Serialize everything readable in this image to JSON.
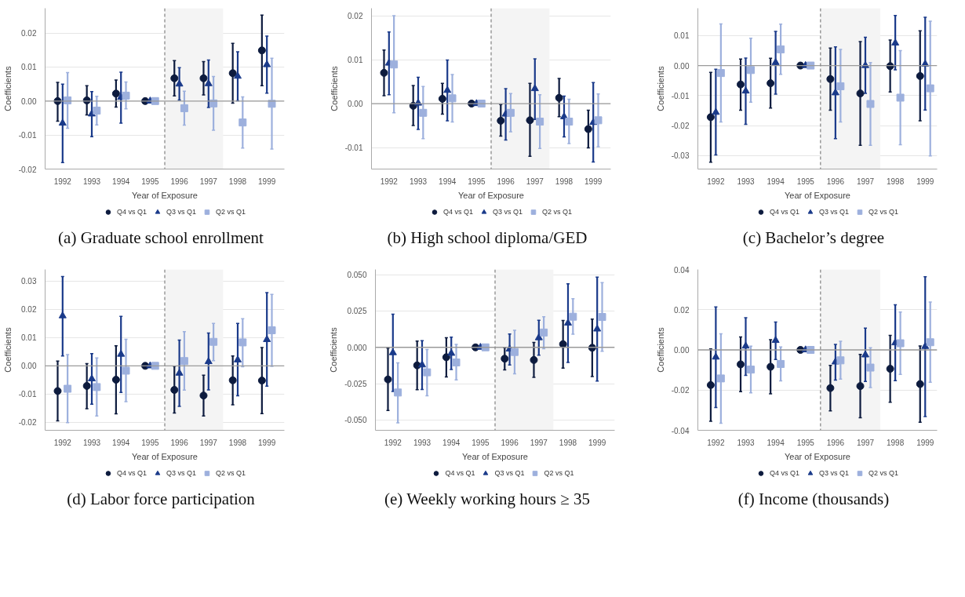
{
  "chart_data": [
    {
      "type": "scatter",
      "title": "(a) Graduate school enrollment",
      "xlabel": "Year of Exposure",
      "ylabel": "Coefficients",
      "xlim": [
        1991.4,
        1999.6
      ],
      "xticks": [
        1992,
        1993,
        1994,
        1995,
        1996,
        1997,
        1998,
        1999
      ],
      "ylim": [
        -0.02,
        0.0273
      ],
      "yticks": [
        -0.02,
        -0.01,
        {
          "value": 0,
          "label": "0.00"
        },
        0.01,
        0.02
      ],
      "grid": "y",
      "legend": "bottom",
      "ref_lines": [
        {
          "axis": "y",
          "value": 0,
          "color": "#9a9a9a",
          "line_style": "solid"
        },
        {
          "axis": "x",
          "value": 1995.5,
          "color": "#8a8a8a",
          "line_style": "dashed"
        }
      ],
      "bands": [
        {
          "axis": "x",
          "from": 1995.5,
          "to": 1997.5,
          "color": "#f4f4f4"
        }
      ],
      "series": [
        {
          "name": "Q4 vs Q1",
          "color": "#0d1b3e",
          "marker": "circle",
          "x": [
            1991.83,
            1992.83,
            1993.83,
            1994.83,
            1995.83,
            1996.83,
            1997.83,
            1998.83
          ],
          "values": [
            0.0,
            0.0002,
            0.0022,
            0,
            0.0067,
            0.0067,
            0.0082,
            0.0149
          ],
          "errors": [
            [
              -0.0059,
              0.0055
            ],
            [
              -0.0041,
              0.0045
            ],
            [
              -0.0018,
              0.0062
            ],
            null,
            [
              0.0015,
              0.0119
            ],
            [
              0.0018,
              0.0116
            ],
            [
              -0.0006,
              0.017
            ],
            [
              0.0045,
              0.0253
            ]
          ]
        },
        {
          "name": "Q3 vs Q1",
          "color": "#1a3a8a",
          "marker": "triangle",
          "x": [
            1992,
            1993,
            1994,
            1995,
            1996,
            1997,
            1998,
            1999
          ],
          "values": [
            -0.0065,
            -0.0038,
            0.0011,
            0,
            0.005,
            0.0051,
            0.0073,
            0.0107
          ],
          "errors": [
            [
              -0.0181,
              0.005
            ],
            [
              -0.0105,
              0.0028
            ],
            [
              -0.0065,
              0.0085
            ],
            null,
            [
              0.0003,
              0.0098
            ],
            [
              -0.0019,
              0.0121
            ],
            [
              0.0001,
              0.0145
            ],
            [
              0.0023,
              0.0191
            ]
          ]
        },
        {
          "name": "Q2 vs Q1",
          "color": "#9db0dd",
          "marker": "square",
          "x": [
            1992.17,
            1993.17,
            1994.17,
            1995.17,
            1996.17,
            1997.17,
            1998.17,
            1999.17
          ],
          "values": [
            0.0002,
            -0.0028,
            0.0016,
            0,
            -0.0021,
            -0.0007,
            -0.0063,
            -0.0008
          ],
          "errors": [
            [
              -0.008,
              0.0084
            ],
            [
              -0.007,
              0.0014
            ],
            [
              -0.0023,
              0.0056
            ],
            null,
            [
              -0.0071,
              0.0029
            ],
            [
              -0.0086,
              0.0072
            ],
            [
              -0.0138,
              0.0012
            ],
            [
              -0.0141,
              0.0126
            ]
          ]
        }
      ]
    },
    {
      "type": "scatter",
      "title": "(b) High school diploma/GED",
      "xlabel": "Year of Exposure",
      "ylabel": "Coefficients",
      "xlim": [
        1991.4,
        1999.6
      ],
      "xticks": [
        1992,
        1993,
        1994,
        1995,
        1996,
        1997,
        1998,
        1999
      ],
      "ylim": [
        -0.0149,
        0.0217
      ],
      "yticks": [
        -0.01,
        {
          "value": 0,
          "label": "0.00"
        },
        0.01,
        0.02
      ],
      "grid": "y",
      "legend": "bottom",
      "ref_lines": [
        {
          "axis": "y",
          "value": 0,
          "color": "#9a9a9a",
          "line_style": "solid"
        },
        {
          "axis": "x",
          "value": 1995.5,
          "color": "#8a8a8a",
          "line_style": "dashed"
        }
      ],
      "bands": [
        {
          "axis": "x",
          "from": 1995.5,
          "to": 1997.5,
          "color": "#f4f4f4"
        }
      ],
      "series": [
        {
          "name": "Q4 vs Q1",
          "color": "#0d1b3e",
          "marker": "circle",
          "x": [
            1991.83,
            1992.83,
            1993.83,
            1994.83,
            1995.83,
            1996.83,
            1997.83,
            1998.83
          ],
          "values": [
            0.007,
            -0.0005,
            0.0011,
            0,
            -0.0039,
            -0.0038,
            0.0013,
            -0.0058
          ],
          "errors": [
            [
              0.0018,
              0.0122
            ],
            [
              -0.005,
              0.0041
            ],
            [
              -0.0024,
              0.0046
            ],
            null,
            [
              -0.0074,
              -0.0002
            ],
            [
              -0.012,
              0.0046
            ],
            [
              -0.003,
              0.0057
            ],
            [
              -0.0101,
              -0.0015
            ]
          ]
        },
        {
          "name": "Q3 vs Q1",
          "color": "#1a3a8a",
          "marker": "triangle",
          "x": [
            1992,
            1993,
            1994,
            1995,
            1996,
            1997,
            1998,
            1999
          ],
          "values": [
            0.0092,
            0.0001,
            0.003,
            0,
            -0.0024,
            0.0034,
            -0.003,
            -0.0043
          ],
          "errors": [
            [
              0.002,
              0.0163
            ],
            [
              -0.0059,
              0.006
            ],
            [
              -0.0039,
              0.0099
            ],
            null,
            [
              -0.0083,
              0.0034
            ],
            [
              -0.0036,
              0.0102
            ],
            [
              -0.0076,
              0.0017
            ],
            [
              -0.0133,
              0.0048
            ]
          ]
        },
        {
          "name": "Q2 vs Q1",
          "color": "#9db0dd",
          "marker": "square",
          "x": [
            1992.17,
            1993.17,
            1994.17,
            1995.17,
            1996.17,
            1997.17,
            1998.17,
            1999.17
          ],
          "values": [
            0.0089,
            -0.0021,
            0.0012,
            0,
            -0.0021,
            -0.0041,
            -0.0041,
            -0.0038
          ],
          "errors": [
            [
              -0.0021,
              0.02
            ],
            [
              -0.008,
              0.0039
            ],
            [
              -0.0042,
              0.0066
            ],
            null,
            [
              -0.0064,
              0.0023
            ],
            [
              -0.0102,
              0.002
            ],
            [
              -0.0091,
              0.001
            ],
            [
              -0.0098,
              0.0022
            ]
          ]
        }
      ]
    },
    {
      "type": "scatter",
      "title": "(c) Bachelor’s degree",
      "xlabel": "Year of Exposure",
      "ylabel": "Coefficients",
      "xlim": [
        1991.4,
        1999.4
      ],
      "xticks": [
        1992,
        1993,
        1994,
        1995,
        1996,
        1997,
        1998,
        1999
      ],
      "ylim": [
        -0.0345,
        0.0191
      ],
      "yticks": [
        -0.03,
        -0.02,
        -0.01,
        {
          "value": 0,
          "label": "0.00"
        },
        0.01
      ],
      "grid": "y",
      "legend": "bottom",
      "ref_lines": [
        {
          "axis": "y",
          "value": 0,
          "color": "#9a9a9a",
          "line_style": "solid"
        },
        {
          "axis": "x",
          "value": 1995.5,
          "color": "#8a8a8a",
          "line_style": "dashed"
        }
      ],
      "bands": [
        {
          "axis": "x",
          "from": 1995.5,
          "to": 1997.5,
          "color": "#f4f4f4"
        }
      ],
      "series": [
        {
          "name": "Q4 vs Q1",
          "color": "#0d1b3e",
          "marker": "circle",
          "x": [
            1991.83,
            1992.83,
            1993.83,
            1994.83,
            1995.83,
            1996.83,
            1997.83,
            1998.83
          ],
          "values": [
            -0.0172,
            -0.0063,
            -0.0059,
            0,
            -0.0045,
            -0.0093,
            -0.0002,
            -0.0035
          ],
          "errors": [
            [
              -0.0322,
              -0.0023
            ],
            [
              -0.0149,
              0.0022
            ],
            [
              -0.0142,
              0.0024
            ],
            null,
            [
              -0.0149,
              0.0058
            ],
            [
              -0.0266,
              0.008
            ],
            [
              -0.0088,
              0.0085
            ],
            [
              -0.0184,
              0.0116
            ]
          ]
        },
        {
          "name": "Q3 vs Q1",
          "color": "#1a3a8a",
          "marker": "triangle",
          "x": [
            1992,
            1993,
            1994,
            1995,
            1996,
            1997,
            1998,
            1999
          ],
          "values": [
            -0.0156,
            -0.0085,
            0.001,
            0,
            -0.0091,
            0.0,
            0.0075,
            0.0005
          ],
          "errors": [
            [
              -0.0298,
              -0.0012
            ],
            [
              -0.0196,
              0.0025
            ],
            [
              -0.0095,
              0.0114
            ],
            null,
            [
              -0.0244,
              0.0062
            ],
            [
              -0.0093,
              0.0094
            ],
            [
              -0.0014,
              0.0167
            ],
            [
              -0.0148,
              0.0161
            ]
          ]
        },
        {
          "name": "Q2 vs Q1",
          "color": "#9db0dd",
          "marker": "square",
          "x": [
            1992.17,
            1993.17,
            1994.17,
            1995.17,
            1996.17,
            1997.17,
            1998.17,
            1999.17
          ],
          "values": [
            -0.0025,
            -0.0015,
            0.0054,
            0,
            -0.0069,
            -0.0128,
            -0.0107,
            -0.0076
          ],
          "errors": [
            [
              -0.0188,
              0.0139
            ],
            [
              -0.0122,
              0.0091
            ],
            [
              -0.0029,
              0.0138
            ],
            null,
            [
              -0.0188,
              0.0054
            ],
            [
              -0.0266,
              0.001
            ],
            [
              -0.0264,
              0.005
            ],
            [
              -0.0301,
              0.0148
            ]
          ]
        }
      ]
    },
    {
      "type": "scatter",
      "title": "(d) Labor force participation",
      "xlabel": "Year of Exposure",
      "ylabel": "Coefficients",
      "xlim": [
        1991.4,
        1999.6
      ],
      "xticks": [
        1992,
        1993,
        1994,
        1995,
        1996,
        1997,
        1998,
        1999
      ],
      "ylim": [
        -0.0228,
        0.0341
      ],
      "yticks": [
        -0.02,
        -0.01,
        {
          "value": 0,
          "label": "0.00"
        },
        0.01,
        0.02,
        0.03
      ],
      "grid": "y",
      "legend": "bottom",
      "ref_lines": [
        {
          "axis": "y",
          "value": 0,
          "color": "#9a9a9a",
          "line_style": "solid"
        },
        {
          "axis": "x",
          "value": 1995.5,
          "color": "#8a8a8a",
          "line_style": "dashed"
        }
      ],
      "bands": [
        {
          "axis": "x",
          "from": 1995.5,
          "to": 1997.5,
          "color": "#f4f4f4"
        }
      ],
      "series": [
        {
          "name": "Q4 vs Q1",
          "color": "#0d1b3e",
          "marker": "circle",
          "x": [
            1991.83,
            1992.83,
            1993.83,
            1994.83,
            1995.83,
            1996.83,
            1997.83,
            1998.83
          ],
          "values": [
            -0.0089,
            -0.0071,
            -0.0049,
            0,
            -0.0085,
            -0.0105,
            -0.0051,
            -0.0052
          ],
          "errors": [
            [
              -0.0195,
              0.0017
            ],
            [
              -0.0152,
              0.0008
            ],
            [
              -0.017,
              0.0071
            ],
            null,
            [
              -0.0167,
              -0.0001
            ],
            [
              -0.0177,
              -0.0033
            ],
            [
              -0.0138,
              0.0035
            ],
            [
              -0.0169,
              0.0065
            ]
          ]
        },
        {
          "name": "Q3 vs Q1",
          "color": "#1a3a8a",
          "marker": "triangle",
          "x": [
            1992,
            1993,
            1994,
            1995,
            1996,
            1997,
            1998,
            1999
          ],
          "values": [
            0.0177,
            -0.0046,
            0.0041,
            0,
            -0.0026,
            0.0015,
            0.0021,
            0.0093
          ],
          "errors": [
            [
              0.0035,
              0.0316
            ],
            [
              -0.0136,
              0.0043
            ],
            [
              -0.0094,
              0.0175
            ],
            null,
            [
              -0.0143,
              0.0091
            ],
            [
              -0.0085,
              0.0116
            ],
            [
              -0.0106,
              0.015
            ],
            [
              -0.0072,
              0.0259
            ]
          ]
        },
        {
          "name": "Q2 vs Q1",
          "color": "#9db0dd",
          "marker": "square",
          "x": [
            1992.17,
            1993.17,
            1994.17,
            1995.17,
            1996.17,
            1997.17,
            1998.17,
            1999.17
          ],
          "values": [
            -0.0081,
            -0.0075,
            -0.0017,
            0,
            0.0017,
            0.0085,
            0.0083,
            0.0126
          ],
          "errors": [
            [
              -0.0201,
              0.004
            ],
            [
              -0.0177,
              0.0028
            ],
            [
              -0.0127,
              0.0094
            ],
            null,
            [
              -0.0086,
              0.0121
            ],
            [
              0.0018,
              0.015
            ],
            [
              -0.0003,
              0.0167
            ],
            [
              -0.0002,
              0.0253
            ]
          ]
        }
      ]
    },
    {
      "type": "scatter",
      "title": "(e) Weekly working hours ≥ 35",
      "xlabel": "Year of Exposure",
      "ylabel": "Coefficients",
      "xlim": [
        1991.4,
        1999.6
      ],
      "xticks": [
        1992,
        1993,
        1994,
        1995,
        1996,
        1997,
        1998,
        1999
      ],
      "ylim": [
        -0.0571,
        0.0536
      ],
      "yticks": [
        {
          "value": -0.05,
          "label": "-0.050"
        },
        -0.025,
        {
          "value": 0,
          "label": "0.000"
        },
        0.025,
        {
          "value": 0.05,
          "label": "0.050"
        }
      ],
      "grid": "y",
      "legend": "bottom",
      "ref_lines": [
        {
          "axis": "y",
          "value": 0,
          "color": "#9a9a9a",
          "line_style": "solid"
        },
        {
          "axis": "x",
          "value": 1995.5,
          "color": "#8a8a8a",
          "line_style": "dashed"
        }
      ],
      "bands": [
        {
          "axis": "x",
          "from": 1995.5,
          "to": 1997.5,
          "color": "#f4f4f4"
        }
      ],
      "series": [
        {
          "name": "Q4 vs Q1",
          "color": "#0d1b3e",
          "marker": "circle",
          "x": [
            1991.83,
            1992.83,
            1993.83,
            1994.83,
            1995.83,
            1996.83,
            1997.83,
            1998.83
          ],
          "values": [
            -0.0221,
            -0.0124,
            -0.0068,
            0,
            -0.0078,
            -0.0087,
            0.0022,
            -0.0003
          ],
          "errors": [
            [
              -0.0435,
              -0.0005
            ],
            [
              -0.0292,
              0.0043
            ],
            [
              -0.0204,
              0.0066
            ],
            null,
            [
              -0.0155,
              -0.0003
            ],
            [
              -0.0207,
              0.0034
            ],
            [
              -0.0143,
              0.0185
            ],
            [
              -0.0201,
              0.0194
            ]
          ]
        },
        {
          "name": "Q3 vs Q1",
          "color": "#1a3a8a",
          "marker": "triangle",
          "x": [
            1992,
            1993,
            1994,
            1995,
            1996,
            1997,
            1998,
            1999
          ],
          "values": [
            -0.0037,
            -0.0121,
            -0.0041,
            0,
            -0.0012,
            0.0066,
            0.0167,
            0.0126
          ],
          "errors": [
            [
              -0.0304,
              0.0228
            ],
            [
              -0.029,
              0.0046
            ],
            [
              -0.0153,
              0.007
            ],
            null,
            [
              -0.0121,
              0.0092
            ],
            [
              -0.0054,
              0.0187
            ],
            [
              -0.0104,
              0.0437
            ],
            [
              -0.0232,
              0.0484
            ]
          ]
        },
        {
          "name": "Q2 vs Q1",
          "color": "#9db0dd",
          "marker": "square",
          "x": [
            1992.17,
            1993.17,
            1994.17,
            1995.17,
            1996.17,
            1997.17,
            1998.17,
            1999.17
          ],
          "values": [
            -0.0311,
            -0.0172,
            -0.0104,
            0,
            -0.0032,
            0.0102,
            0.0211,
            0.0209
          ],
          "errors": [
            [
              -0.052,
              -0.0107
            ],
            [
              -0.0333,
              -0.0015
            ],
            [
              -0.0224,
              0.002
            ],
            null,
            [
              -0.0182,
              0.0117
            ],
            [
              -0.001,
              0.0211
            ],
            [
              0.009,
              0.0335
            ],
            [
              -0.0027,
              0.0446
            ]
          ]
        }
      ]
    },
    {
      "type": "scatter",
      "title": "(f) Income (thousands)",
      "xlabel": "Year of Exposure",
      "ylabel": "Coefficients",
      "xlim": [
        1991.4,
        1999.4
      ],
      "xticks": [
        1992,
        1993,
        1994,
        1995,
        1996,
        1997,
        1998,
        1999
      ],
      "ylim": [
        -0.04,
        0.04
      ],
      "yticks": [
        -0.04,
        -0.02,
        {
          "value": 0,
          "label": "0.00"
        },
        0.02,
        0.04
      ],
      "grid": "y",
      "legend": "bottom",
      "ref_lines": [
        {
          "axis": "y",
          "value": 0,
          "color": "#9a9a9a",
          "line_style": "solid"
        },
        {
          "axis": "x",
          "value": 1995.5,
          "color": "#8a8a8a",
          "line_style": "dashed"
        }
      ],
      "bands": [
        {
          "axis": "x",
          "from": 1995.5,
          "to": 1997.5,
          "color": "#f4f4f4"
        }
      ],
      "series": [
        {
          "name": "Q4 vs Q1",
          "color": "#0d1b3e",
          "marker": "circle",
          "x": [
            1991.83,
            1992.83,
            1993.83,
            1994.83,
            1995.83,
            1996.83,
            1997.83,
            1998.83
          ],
          "values": [
            -0.0175,
            -0.0072,
            -0.0084,
            0,
            -0.019,
            -0.018,
            -0.0094,
            -0.017
          ],
          "errors": [
            [
              -0.0355,
              0.0005
            ],
            [
              -0.0208,
              0.0064
            ],
            [
              -0.0219,
              0.0051
            ],
            null,
            [
              -0.0303,
              -0.0077
            ],
            [
              -0.0338,
              -0.0022
            ],
            [
              -0.026,
              0.0072
            ],
            [
              -0.036,
              0.002
            ]
          ]
        },
        {
          "name": "Q3 vs Q1",
          "color": "#1a3a8a",
          "marker": "triangle",
          "x": [
            1992,
            1993,
            1994,
            1995,
            1996,
            1997,
            1998,
            1999
          ],
          "values": [
            -0.0036,
            0.0019,
            0.0047,
            0,
            -0.006,
            -0.0025,
            0.0035,
            0.0017
          ],
          "errors": [
            [
              -0.0287,
              0.0214
            ],
            [
              -0.0127,
              0.016
            ],
            [
              -0.0048,
              0.0139
            ],
            null,
            [
              -0.015,
              0.0027
            ],
            [
              -0.0157,
              0.0108
            ],
            [
              -0.0153,
              0.0224
            ],
            [
              -0.0332,
              0.0364
            ]
          ]
        },
        {
          "name": "Q2 vs Q1",
          "color": "#9db0dd",
          "marker": "square",
          "x": [
            1992.17,
            1993.17,
            1994.17,
            1995.17,
            1996.17,
            1997.17,
            1998.17,
            1999.17
          ],
          "values": [
            -0.0142,
            -0.0098,
            -0.007,
            0,
            -0.0052,
            -0.0088,
            0.0033,
            0.0038
          ],
          "errors": [
            [
              -0.0365,
              0.008
            ],
            [
              -0.0214,
              0.0019
            ],
            [
              -0.0154,
              0.0015
            ],
            null,
            [
              -0.0145,
              0.0043
            ],
            [
              -0.0187,
              0.0011
            ],
            [
              -0.0122,
              0.0188
            ],
            [
              -0.0161,
              0.0238
            ]
          ]
        }
      ]
    }
  ]
}
